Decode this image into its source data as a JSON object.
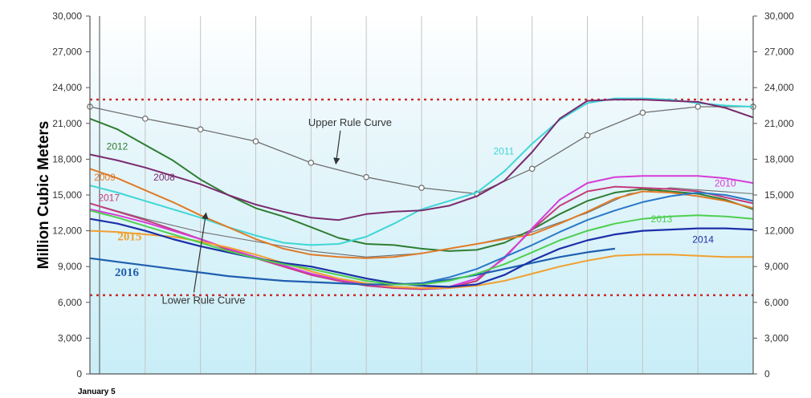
{
  "chart_data": {
    "type": "line",
    "ylabel": "Million Cubic Meters",
    "xlabel": "January 5",
    "ylim": [
      0,
      30000
    ],
    "x_range": [
      0,
      24
    ],
    "y_ticks": [
      "0",
      "3,000",
      "6,000",
      "9,000",
      "12,000",
      "15,000",
      "18,000",
      "21,000",
      "24,000",
      "27,000",
      "30,000"
    ],
    "y_tick_values": [
      0,
      3000,
      6000,
      9000,
      12000,
      15000,
      18000,
      21000,
      24000,
      27000,
      30000
    ],
    "grid": "vertical",
    "background": "#dff4fa",
    "reference_lines": [
      {
        "value": 23000,
        "color": "#cc2a2a",
        "style": "dotted"
      },
      {
        "value": 6600,
        "color": "#cc2a2a",
        "style": "dotted"
      }
    ],
    "annotations": [
      {
        "text": "Upper Rule Curve",
        "x": 7.9,
        "y": 20800,
        "arrow_to": [
          8.9,
          17600
        ]
      },
      {
        "text": "Lower Rule Curve",
        "x": 2.6,
        "y": 5900,
        "arrow_to": [
          4.2,
          13500
        ]
      }
    ],
    "series": [
      {
        "name": "Upper Rule Curve",
        "color": "#6e6e6e",
        "width": 1.3,
        "markers": true,
        "points": [
          [
            0,
            22400
          ],
          [
            2,
            21400
          ],
          [
            4,
            20500
          ],
          [
            6,
            19500
          ],
          [
            8,
            17700
          ],
          [
            10,
            16500
          ],
          [
            12,
            15600
          ],
          [
            14,
            15100
          ],
          [
            16,
            17200
          ],
          [
            18,
            20000
          ],
          [
            20,
            21900
          ],
          [
            22,
            22400
          ],
          [
            24,
            22400
          ]
        ]
      },
      {
        "name": "Lower Rule Curve",
        "color": "#6e6e6e",
        "width": 1.1,
        "markers": false,
        "points": [
          [
            0,
            14300
          ],
          [
            2,
            13000
          ],
          [
            4,
            11900
          ],
          [
            6,
            11100
          ],
          [
            8,
            10300
          ],
          [
            10,
            9800
          ],
          [
            12,
            10100
          ],
          [
            14,
            10900
          ],
          [
            16,
            11900
          ],
          [
            18,
            13500
          ],
          [
            19.5,
            15100
          ],
          [
            21,
            15600
          ],
          [
            24,
            15100
          ]
        ]
      },
      {
        "name": "2012",
        "color": "#2f7d32",
        "width": 2,
        "label_x": 0.6,
        "label_y": 18800,
        "points": [
          [
            0,
            21400
          ],
          [
            1,
            20500
          ],
          [
            2,
            19200
          ],
          [
            3,
            17900
          ],
          [
            4,
            16300
          ],
          [
            5,
            15000
          ],
          [
            6,
            13900
          ],
          [
            7,
            13200
          ],
          [
            8,
            12300
          ],
          [
            9,
            11400
          ],
          [
            10,
            10900
          ],
          [
            11,
            10800
          ],
          [
            12,
            10500
          ],
          [
            13,
            10300
          ],
          [
            14,
            10400
          ],
          [
            15,
            11000
          ],
          [
            16,
            12100
          ],
          [
            17,
            13400
          ],
          [
            18,
            14500
          ],
          [
            19,
            15200
          ],
          [
            20,
            15500
          ],
          [
            21,
            15300
          ],
          [
            22,
            15100
          ],
          [
            23,
            14600
          ],
          [
            24,
            13800
          ]
        ]
      },
      {
        "name": "2011",
        "color": "#3fd6d6",
        "width": 2,
        "label_x": 14.6,
        "label_y": 18400,
        "points": [
          [
            0,
            15800
          ],
          [
            1,
            15200
          ],
          [
            2,
            14500
          ],
          [
            3,
            13800
          ],
          [
            4,
            13100
          ],
          [
            5,
            12300
          ],
          [
            6,
            11600
          ],
          [
            7,
            11000
          ],
          [
            8,
            10800
          ],
          [
            9,
            10900
          ],
          [
            10,
            11500
          ],
          [
            11,
            12600
          ],
          [
            12,
            13800
          ],
          [
            13,
            14500
          ],
          [
            14,
            15200
          ],
          [
            15,
            17000
          ],
          [
            16,
            19300
          ],
          [
            17,
            21300
          ],
          [
            18,
            22700
          ],
          [
            19,
            23100
          ],
          [
            20,
            23100
          ],
          [
            21,
            23000
          ],
          [
            22,
            22700
          ],
          [
            23,
            22500
          ],
          [
            24,
            22400
          ]
        ]
      },
      {
        "name": "2009",
        "color": "#e07b28",
        "width": 2,
        "label_x": 0.15,
        "label_y": 16200,
        "points": [
          [
            0,
            17200
          ],
          [
            1,
            16400
          ],
          [
            2,
            15400
          ],
          [
            3,
            14400
          ],
          [
            4,
            13300
          ],
          [
            5,
            12300
          ],
          [
            6,
            11300
          ],
          [
            7,
            10500
          ],
          [
            8,
            10000
          ],
          [
            9,
            9800
          ],
          [
            10,
            9700
          ],
          [
            11,
            9800
          ],
          [
            12,
            10100
          ],
          [
            13,
            10500
          ],
          [
            14,
            10900
          ],
          [
            15,
            11300
          ],
          [
            16,
            11700
          ],
          [
            17,
            12600
          ],
          [
            18,
            13600
          ],
          [
            19,
            14700
          ],
          [
            20,
            15300
          ],
          [
            21,
            15200
          ],
          [
            22,
            14900
          ],
          [
            23,
            14500
          ],
          [
            24,
            13900
          ]
        ]
      },
      {
        "name": "2008",
        "color": "#7a2a6e",
        "width": 2,
        "label_x": 2.3,
        "label_y": 16200,
        "points": [
          [
            0,
            18400
          ],
          [
            1,
            17900
          ],
          [
            2,
            17300
          ],
          [
            3,
            16600
          ],
          [
            4,
            15900
          ],
          [
            5,
            15000
          ],
          [
            6,
            14200
          ],
          [
            7,
            13600
          ],
          [
            8,
            13100
          ],
          [
            9,
            12900
          ],
          [
            10,
            13400
          ],
          [
            11,
            13600
          ],
          [
            12,
            13700
          ],
          [
            13,
            14100
          ],
          [
            14,
            14900
          ],
          [
            15,
            16200
          ],
          [
            16,
            18600
          ],
          [
            17,
            21400
          ],
          [
            18,
            22900
          ],
          [
            19,
            23000
          ],
          [
            20,
            23000
          ],
          [
            21,
            22900
          ],
          [
            22,
            22800
          ],
          [
            23,
            22300
          ],
          [
            24,
            21500
          ]
        ]
      },
      {
        "name": "2017",
        "color": "#c43b7a",
        "width": 2,
        "label_x": 0.3,
        "label_y": 14500,
        "points": [
          [
            0,
            14300
          ],
          [
            1,
            13600
          ],
          [
            2,
            12900
          ],
          [
            3,
            12100
          ],
          [
            4,
            11300
          ],
          [
            5,
            10400
          ],
          [
            6,
            9700
          ],
          [
            7,
            9000
          ],
          [
            8,
            8300
          ],
          [
            9,
            7800
          ],
          [
            10,
            7400
          ],
          [
            11,
            7200
          ],
          [
            12,
            7100
          ],
          [
            13,
            7200
          ],
          [
            14,
            7800
          ],
          [
            15,
            9800
          ],
          [
            16,
            12100
          ],
          [
            17,
            14100
          ],
          [
            18,
            15300
          ],
          [
            19,
            15700
          ],
          [
            20,
            15600
          ],
          [
            21,
            15500
          ],
          [
            22,
            15300
          ],
          [
            23,
            14800
          ],
          [
            24,
            14300
          ]
        ]
      },
      {
        "name": "2010",
        "color": "#d73bd7",
        "width": 2,
        "label_x": 22.6,
        "label_y": 15700,
        "points": [
          [
            0,
            13800
          ],
          [
            1,
            13300
          ],
          [
            2,
            12700
          ],
          [
            3,
            12000
          ],
          [
            4,
            11300
          ],
          [
            5,
            10500
          ],
          [
            6,
            9800
          ],
          [
            7,
            9100
          ],
          [
            8,
            8400
          ],
          [
            9,
            7900
          ],
          [
            10,
            7500
          ],
          [
            11,
            7300
          ],
          [
            12,
            7200
          ],
          [
            13,
            7300
          ],
          [
            14,
            8000
          ],
          [
            15,
            9700
          ],
          [
            16,
            12200
          ],
          [
            17,
            14600
          ],
          [
            18,
            16000
          ],
          [
            19,
            16500
          ],
          [
            20,
            16600
          ],
          [
            21,
            16600
          ],
          [
            22,
            16600
          ],
          [
            23,
            16400
          ],
          [
            24,
            16000
          ]
        ]
      },
      {
        "name": "2015",
        "color": "#f0a030",
        "width": 2,
        "label_x": 1.0,
        "label_y": 11200,
        "big": true,
        "points": [
          [
            0,
            12000
          ],
          [
            1,
            11900
          ],
          [
            2,
            11700
          ],
          [
            3,
            11500
          ],
          [
            4,
            11100
          ],
          [
            5,
            10600
          ],
          [
            6,
            10000
          ],
          [
            7,
            9300
          ],
          [
            8,
            8600
          ],
          [
            9,
            8000
          ],
          [
            10,
            7600
          ],
          [
            11,
            7300
          ],
          [
            12,
            7200
          ],
          [
            13,
            7200
          ],
          [
            14,
            7400
          ],
          [
            15,
            7800
          ],
          [
            16,
            8400
          ],
          [
            17,
            9000
          ],
          [
            18,
            9500
          ],
          [
            19,
            9900
          ],
          [
            20,
            10000
          ],
          [
            21,
            10000
          ],
          [
            22,
            9900
          ],
          [
            23,
            9800
          ],
          [
            24,
            9800
          ]
        ]
      },
      {
        "name": "2016",
        "color": "#1f5fb0",
        "width": 2.2,
        "label_x": 0.9,
        "label_y": 8200,
        "big": true,
        "points": [
          [
            0,
            9700
          ],
          [
            1,
            9400
          ],
          [
            2,
            9100
          ],
          [
            3,
            8800
          ],
          [
            4,
            8500
          ],
          [
            5,
            8200
          ],
          [
            6,
            8000
          ],
          [
            7,
            7800
          ],
          [
            8,
            7700
          ],
          [
            9,
            7600
          ],
          [
            10,
            7500
          ],
          [
            11,
            7500
          ],
          [
            12,
            7600
          ],
          [
            13,
            7900
          ],
          [
            14,
            8300
          ],
          [
            15,
            8800
          ],
          [
            16,
            9300
          ],
          [
            17,
            9800
          ],
          [
            18,
            10200
          ],
          [
            19,
            10500
          ]
        ]
      },
      {
        "name": "2014",
        "color": "#1c2fa8",
        "width": 2.2,
        "label_x": 21.8,
        "label_y": 11000,
        "points": [
          [
            0,
            13000
          ],
          [
            1,
            12600
          ],
          [
            2,
            12000
          ],
          [
            3,
            11300
          ],
          [
            4,
            10700
          ],
          [
            5,
            10200
          ],
          [
            6,
            9700
          ],
          [
            7,
            9300
          ],
          [
            8,
            9000
          ],
          [
            9,
            8500
          ],
          [
            10,
            8000
          ],
          [
            11,
            7600
          ],
          [
            12,
            7400
          ],
          [
            13,
            7300
          ],
          [
            14,
            7500
          ],
          [
            15,
            8300
          ],
          [
            16,
            9500
          ],
          [
            17,
            10500
          ],
          [
            18,
            11200
          ],
          [
            19,
            11700
          ],
          [
            20,
            12000
          ],
          [
            21,
            12100
          ],
          [
            22,
            12200
          ],
          [
            23,
            12200
          ],
          [
            24,
            12100
          ]
        ]
      },
      {
        "name": "2013",
        "color": "#4fcf4f",
        "width": 2,
        "label_x": 20.3,
        "label_y": 12700,
        "points": [
          [
            0,
            13700
          ],
          [
            1,
            13100
          ],
          [
            2,
            12400
          ],
          [
            3,
            11700
          ],
          [
            4,
            11000
          ],
          [
            5,
            10300
          ],
          [
            6,
            9700
          ],
          [
            7,
            9200
          ],
          [
            8,
            8800
          ],
          [
            9,
            8300
          ],
          [
            10,
            7800
          ],
          [
            11,
            7500
          ],
          [
            12,
            7500
          ],
          [
            13,
            7800
          ],
          [
            14,
            8400
          ],
          [
            15,
            9200
          ],
          [
            16,
            10200
          ],
          [
            17,
            11200
          ],
          [
            18,
            12000
          ],
          [
            19,
            12600
          ],
          [
            20,
            13000
          ],
          [
            21,
            13200
          ],
          [
            22,
            13300
          ],
          [
            23,
            13200
          ],
          [
            24,
            13000
          ]
        ]
      },
      {
        "name": "",
        "color": "#2a78c8",
        "width": 2,
        "points": [
          [
            12,
            7600
          ],
          [
            13,
            8100
          ],
          [
            14,
            8800
          ],
          [
            15,
            9800
          ],
          [
            16,
            10800
          ],
          [
            17,
            11900
          ],
          [
            18,
            12900
          ],
          [
            19,
            13700
          ],
          [
            20,
            14400
          ],
          [
            21,
            14900
          ],
          [
            22,
            15200
          ],
          [
            23,
            15000
          ],
          [
            24,
            14500
          ]
        ]
      }
    ]
  }
}
